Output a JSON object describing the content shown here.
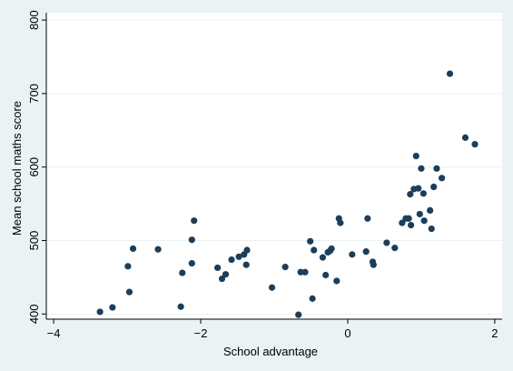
{
  "chart_data": {
    "type": "scatter",
    "title": "",
    "xlabel": "School advantage",
    "ylabel": "Mean school maths score",
    "xlim": [
      -4.1,
      2.1
    ],
    "ylim": [
      393,
      810
    ],
    "xticks": [
      -4,
      -2,
      0,
      2
    ],
    "yticks": [
      400,
      500,
      600,
      700,
      800
    ],
    "grid": "y-major",
    "legend": "none",
    "colors": {
      "background": "#eaf2f3",
      "plot_area": "#ffffff",
      "marker": "#1b3e5b",
      "grid": "#eaf2f3"
    },
    "points": [
      {
        "x": -3.37,
        "y": 403
      },
      {
        "x": -3.2,
        "y": 409
      },
      {
        "x": -2.99,
        "y": 465
      },
      {
        "x": -2.97,
        "y": 430
      },
      {
        "x": -2.92,
        "y": 489
      },
      {
        "x": -2.58,
        "y": 488
      },
      {
        "x": -2.27,
        "y": 410
      },
      {
        "x": -2.25,
        "y": 456
      },
      {
        "x": -2.12,
        "y": 469
      },
      {
        "x": -2.12,
        "y": 501
      },
      {
        "x": -2.09,
        "y": 527
      },
      {
        "x": -1.77,
        "y": 463
      },
      {
        "x": -1.71,
        "y": 448
      },
      {
        "x": -1.66,
        "y": 454
      },
      {
        "x": -1.58,
        "y": 474
      },
      {
        "x": -1.48,
        "y": 478
      },
      {
        "x": -1.41,
        "y": 481
      },
      {
        "x": -1.38,
        "y": 467
      },
      {
        "x": -1.37,
        "y": 487
      },
      {
        "x": -1.03,
        "y": 436
      },
      {
        "x": -0.85,
        "y": 464
      },
      {
        "x": -0.67,
        "y": 399
      },
      {
        "x": -0.64,
        "y": 457
      },
      {
        "x": -0.58,
        "y": 457
      },
      {
        "x": -0.51,
        "y": 499
      },
      {
        "x": -0.48,
        "y": 421
      },
      {
        "x": -0.46,
        "y": 487
      },
      {
        "x": -0.34,
        "y": 477
      },
      {
        "x": -0.3,
        "y": 453
      },
      {
        "x": -0.27,
        "y": 484
      },
      {
        "x": -0.24,
        "y": 486
      },
      {
        "x": -0.22,
        "y": 489
      },
      {
        "x": -0.15,
        "y": 445
      },
      {
        "x": -0.12,
        "y": 530
      },
      {
        "x": -0.1,
        "y": 524
      },
      {
        "x": 0.06,
        "y": 481
      },
      {
        "x": 0.25,
        "y": 485
      },
      {
        "x": 0.27,
        "y": 530
      },
      {
        "x": 0.34,
        "y": 471
      },
      {
        "x": 0.35,
        "y": 467
      },
      {
        "x": 0.53,
        "y": 497
      },
      {
        "x": 0.64,
        "y": 490
      },
      {
        "x": 0.74,
        "y": 524
      },
      {
        "x": 0.79,
        "y": 530
      },
      {
        "x": 0.83,
        "y": 530
      },
      {
        "x": 0.85,
        "y": 563
      },
      {
        "x": 0.86,
        "y": 521
      },
      {
        "x": 0.9,
        "y": 570
      },
      {
        "x": 0.93,
        "y": 615
      },
      {
        "x": 0.96,
        "y": 571
      },
      {
        "x": 0.98,
        "y": 536
      },
      {
        "x": 1.0,
        "y": 598
      },
      {
        "x": 1.03,
        "y": 564
      },
      {
        "x": 1.04,
        "y": 527
      },
      {
        "x": 1.12,
        "y": 541
      },
      {
        "x": 1.14,
        "y": 516
      },
      {
        "x": 1.17,
        "y": 573
      },
      {
        "x": 1.21,
        "y": 598
      },
      {
        "x": 1.28,
        "y": 585
      },
      {
        "x": 1.39,
        "y": 727
      },
      {
        "x": 1.6,
        "y": 640
      },
      {
        "x": 1.73,
        "y": 631
      }
    ]
  }
}
